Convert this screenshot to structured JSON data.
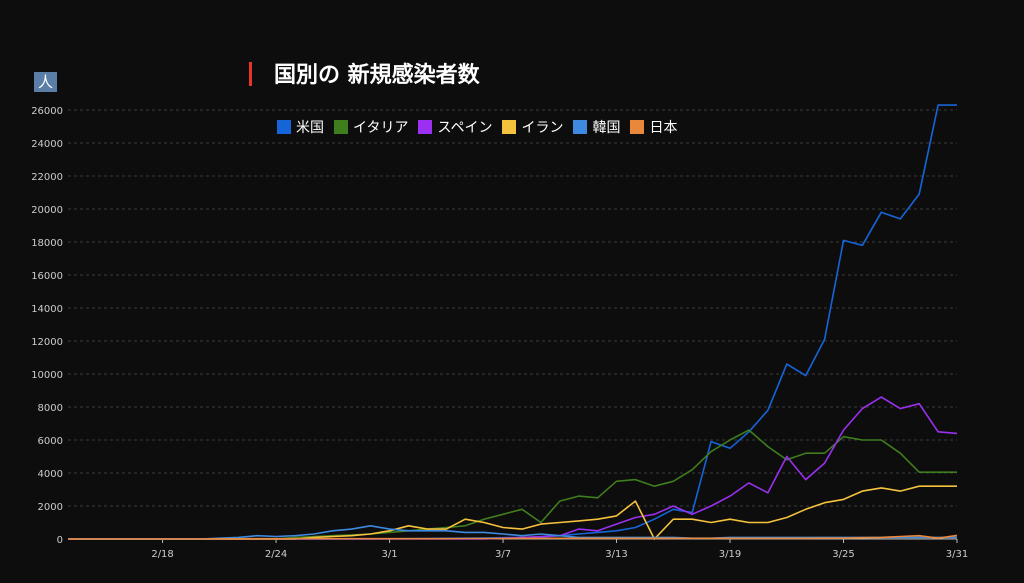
{
  "title": "国別の 新規感染者数",
  "unit": "人",
  "colors": {
    "background": "#0d0d0d",
    "accent": "#e8352c",
    "grid": "#3a3a3a",
    "axis": "#bbbbbb"
  },
  "chart_data": {
    "type": "line",
    "title": "国別の 新規感染者数",
    "ylabel": "人",
    "xlabel": "",
    "ylim": [
      0,
      26000
    ],
    "yticks": [
      0,
      2000,
      4000,
      6000,
      8000,
      10000,
      12000,
      14000,
      16000,
      18000,
      20000,
      22000,
      24000,
      26000
    ],
    "grid": true,
    "legend_position": "top",
    "x": [
      "2/13",
      "2/14",
      "2/15",
      "2/16",
      "2/17",
      "2/18",
      "2/19",
      "2/20",
      "2/21",
      "2/22",
      "2/23",
      "2/24",
      "2/25",
      "2/26",
      "2/27",
      "2/28",
      "2/29",
      "3/1",
      "3/2",
      "3/3",
      "3/4",
      "3/5",
      "3/6",
      "3/7",
      "3/8",
      "3/9",
      "3/10",
      "3/11",
      "3/12",
      "3/13",
      "3/14",
      "3/15",
      "3/16",
      "3/17",
      "3/18",
      "3/19",
      "3/20",
      "3/21",
      "3/22",
      "3/23",
      "3/24",
      "3/25",
      "3/26",
      "3/27",
      "3/28",
      "3/29",
      "3/30",
      "3/31"
    ],
    "x_tick_labels": [
      "2/18",
      "2/24",
      "3/1",
      "3/7",
      "3/13",
      "3/19",
      "3/25",
      "3/31"
    ],
    "series": [
      {
        "name": "米国",
        "color": "#1565d8",
        "values": [
          0,
          0,
          0,
          0,
          0,
          0,
          0,
          0,
          0,
          0,
          0,
          0,
          0,
          0,
          0,
          0,
          5,
          10,
          20,
          30,
          40,
          50,
          60,
          80,
          100,
          120,
          200,
          300,
          400,
          500,
          700,
          1200,
          1800,
          1600,
          5900,
          5500,
          6500,
          7800,
          10600,
          9900,
          12100,
          18100,
          17800,
          19800,
          19400,
          20900,
          26300,
          26300
        ]
      },
      {
        "name": "イタリア",
        "color": "#3f7d1e",
        "values": [
          0,
          0,
          0,
          0,
          0,
          0,
          0,
          0,
          0,
          0,
          0,
          0,
          100,
          150,
          200,
          250,
          300,
          400,
          500,
          600,
          700,
          800,
          1200,
          1500,
          1800,
          1000,
          2300,
          2600,
          2500,
          3500,
          3600,
          3200,
          3500,
          4200,
          5300,
          6000,
          6600,
          5600,
          4800,
          5200,
          5200,
          6200,
          6000,
          6000,
          5200,
          4050,
          4050,
          4050
        ]
      },
      {
        "name": "スペイン",
        "color": "#9b30f0",
        "values": [
          0,
          0,
          0,
          0,
          0,
          0,
          0,
          0,
          0,
          0,
          0,
          0,
          0,
          0,
          0,
          0,
          0,
          0,
          0,
          0,
          0,
          0,
          0,
          50,
          100,
          150,
          200,
          600,
          500,
          900,
          1300,
          1500,
          2000,
          1500,
          2000,
          2600,
          3400,
          2800,
          5000,
          3600,
          4600,
          6600,
          7900,
          8600,
          7900,
          8200,
          6500,
          6400
        ]
      },
      {
        "name": "イラン",
        "color": "#f5c23e",
        "values": [
          0,
          0,
          0,
          0,
          0,
          0,
          0,
          0,
          0,
          0,
          0,
          0,
          0,
          100,
          150,
          200,
          300,
          500,
          800,
          600,
          600,
          1200,
          1000,
          700,
          600,
          900,
          1000,
          1100,
          1200,
          1400,
          2300,
          0,
          1200,
          1200,
          1000,
          1200,
          1000,
          1000,
          1300,
          1800,
          2200,
          2400,
          2900,
          3100,
          2900,
          3200,
          3200,
          3200
        ]
      },
      {
        "name": "韓国",
        "color": "#3d8ae0",
        "values": [
          0,
          0,
          0,
          0,
          0,
          0,
          0,
          0,
          50,
          100,
          200,
          150,
          200,
          300,
          500,
          600,
          800,
          600,
          500,
          500,
          500,
          400,
          400,
          300,
          200,
          300,
          200,
          100,
          100,
          100,
          100,
          100,
          100,
          50,
          50,
          100,
          100,
          100,
          100,
          100,
          100,
          100,
          100,
          100,
          100,
          100,
          100,
          100
        ]
      },
      {
        "name": "日本",
        "color": "#e9873a",
        "values": [
          0,
          0,
          0,
          0,
          0,
          0,
          0,
          0,
          10,
          15,
          20,
          20,
          20,
          20,
          20,
          20,
          20,
          20,
          20,
          20,
          20,
          30,
          30,
          30,
          40,
          40,
          40,
          40,
          40,
          40,
          40,
          40,
          40,
          40,
          40,
          40,
          40,
          40,
          40,
          40,
          50,
          50,
          80,
          100,
          150,
          200,
          50,
          220
        ]
      }
    ]
  }
}
